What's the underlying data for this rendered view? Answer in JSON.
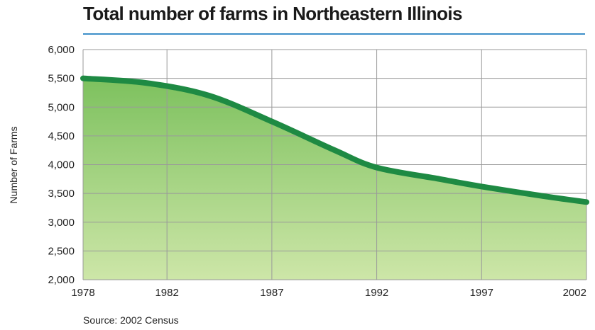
{
  "chart_data": {
    "type": "area",
    "title": "Total number of farms in Northeastern Illinois",
    "ylabel": "Number of Farms",
    "xlabel": "",
    "x_ticks": [
      "1978",
      "1982",
      "1987",
      "1992",
      "1997",
      "2002"
    ],
    "y_ticks": [
      "6,000",
      "5,500",
      "5,000",
      "4,500",
      "4,000",
      "3,500",
      "3,000",
      "2,500",
      "2,000"
    ],
    "xlim": [
      1978,
      2002
    ],
    "ylim": [
      2000,
      6000
    ],
    "grid": true,
    "series": [
      {
        "x": [
          1978,
          1981,
          1984,
          1987,
          1990,
          1992,
          1995,
          1997,
          2000,
          2002
        ],
        "y": [
          5500,
          5420,
          5200,
          4750,
          4250,
          3950,
          3750,
          3620,
          3450,
          3350
        ]
      }
    ],
    "source": "Source: 2002 Census",
    "colors": {
      "line": "#1e8a43",
      "fill_top": "#7dc15e",
      "fill_bottom": "#cde6a8",
      "grid": "#9a9a9a",
      "rule": "#3d8fc9"
    }
  }
}
